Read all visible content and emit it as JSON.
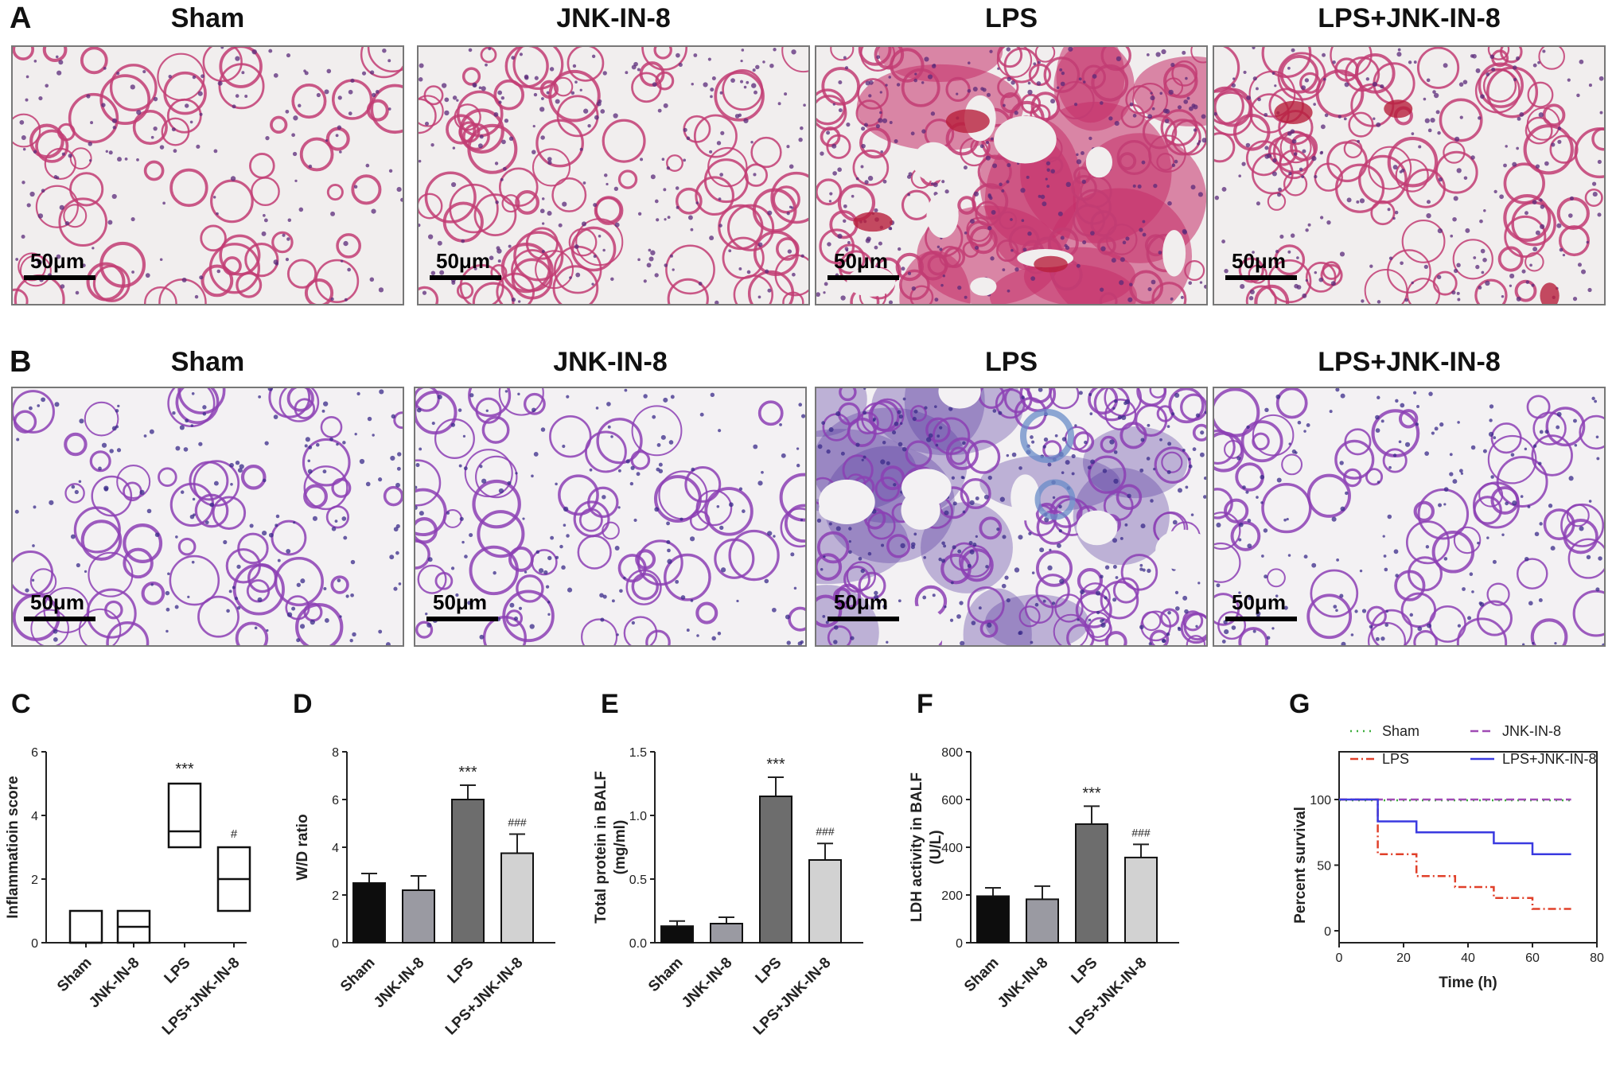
{
  "panel_labels": [
    "A",
    "B",
    "C",
    "D",
    "E",
    "F",
    "G"
  ],
  "rows": [
    {
      "label": "A",
      "titles": [
        "Sham",
        "JNK-IN-8",
        "LPS",
        "LPS+JNK-IN-8"
      ],
      "stain": "he",
      "colors": {
        "bg": "#f1eeee",
        "cell": "#c23c73",
        "dense": "#c4306a",
        "vessel": "#b81f3c"
      },
      "density": [
        0.55,
        0.75,
        1.0,
        0.8
      ]
    },
    {
      "label": "B",
      "titles": [
        "Sham",
        "JNK-IN-8",
        "LPS",
        "LPS+JNK-IN-8"
      ],
      "stain": "pas",
      "colors": {
        "bg": "#f3f1f3",
        "cell": "#8c3fb4",
        "dense": "#5a3aa0",
        "vessel": "#b4b0b0"
      },
      "density": [
        0.55,
        0.55,
        1.0,
        0.6
      ]
    }
  ],
  "scale_bar": "50μm",
  "chart_data": [
    {
      "panel": "C",
      "type": "box",
      "ylabel": "Inflammatioin score",
      "ylim": [
        0,
        6
      ],
      "yticks": [
        0,
        2,
        4,
        6
      ],
      "categories": [
        "Sham",
        "JNK-IN-8",
        "LPS",
        "LPS+JNK-IN-8"
      ],
      "boxes": [
        {
          "q1": 0,
          "median": 0,
          "q3": 1
        },
        {
          "q1": 0,
          "median": 0.5,
          "q3": 1
        },
        {
          "q1": 3,
          "median": 3.5,
          "q3": 5
        },
        {
          "q1": 1,
          "median": 2,
          "q3": 3
        }
      ],
      "annotations": [
        "",
        "",
        "***",
        "#"
      ]
    },
    {
      "panel": "D",
      "type": "bar",
      "ylabel": "W/D ratio",
      "ylim": [
        0,
        8
      ],
      "yticks": [
        0,
        2,
        4,
        6,
        8
      ],
      "categories": [
        "Sham",
        "JNK-IN-8",
        "LPS",
        "LPS+JNK-IN-8"
      ],
      "values": [
        2.5,
        2.2,
        6.0,
        3.75
      ],
      "errors": [
        0.4,
        0.6,
        0.6,
        0.8
      ],
      "annotations": [
        "",
        "",
        "***",
        "###"
      ],
      "colors": [
        "#0d0d0d",
        "#9a9aa2",
        "#6d6d6d",
        "#d2d2d2"
      ]
    },
    {
      "panel": "E",
      "type": "bar",
      "ylabel": "Total protein in BALF (mg/ml)",
      "ylabel_lines": [
        "Total protein in BALF",
        "(mg/ml)"
      ],
      "ylim": [
        0,
        1.5
      ],
      "yticks": [
        "0.0",
        "0.5",
        "1.0",
        "1.5"
      ],
      "categories": [
        "Sham",
        "JNK-IN-8",
        "LPS",
        "LPS+JNK-IN-8"
      ],
      "values": [
        0.13,
        0.15,
        1.15,
        0.65
      ],
      "errors": [
        0.04,
        0.05,
        0.15,
        0.13
      ],
      "annotations": [
        "",
        "",
        "***",
        "###"
      ],
      "colors": [
        "#0d0d0d",
        "#9a9aa2",
        "#6d6d6d",
        "#d2d2d2"
      ]
    },
    {
      "panel": "F",
      "type": "bar",
      "ylabel": "LDH activity in BALF (U/L)",
      "ylabel_lines": [
        "LDH activity in BALF",
        "(U/L)"
      ],
      "ylim": [
        0,
        800
      ],
      "yticks": [
        0,
        200,
        400,
        600,
        800
      ],
      "categories": [
        "Sham",
        "JNK-IN-8",
        "LPS",
        "LPS+JNK-IN-8"
      ],
      "values": [
        195,
        182,
        497,
        357
      ],
      "errors": [
        35,
        55,
        75,
        55
      ],
      "annotations": [
        "",
        "",
        "***",
        "###"
      ],
      "colors": [
        "#0d0d0d",
        "#9a9aa2",
        "#6d6d6d",
        "#d2d2d2"
      ]
    },
    {
      "panel": "G",
      "type": "line",
      "xlabel": "Time (h)",
      "ylabel": "Percent survival",
      "xlim": [
        0,
        80
      ],
      "ylim": [
        0,
        100
      ],
      "xticks": [
        0,
        20,
        40,
        60,
        80
      ],
      "yticks": [
        0,
        50,
        100
      ],
      "series": [
        {
          "name": "Sham",
          "color": "#3fae3f",
          "dash": "2,6",
          "x": [
            0,
            72
          ],
          "y": [
            100,
            100
          ]
        },
        {
          "name": "JNK-IN-8",
          "color": "#a04ab4",
          "dash": "10,5",
          "x": [
            0,
            72
          ],
          "y": [
            100,
            100
          ]
        },
        {
          "name": "LPS",
          "color": "#e0402a",
          "dash": "10,4,2,4",
          "x": [
            0,
            12,
            12,
            24,
            24,
            36,
            36,
            48,
            48,
            60,
            60,
            72
          ],
          "y": [
            100,
            100,
            58.3,
            58.3,
            41.7,
            41.7,
            33.3,
            33.3,
            25,
            25,
            16.7,
            16.7
          ]
        },
        {
          "name": "LPS+JNK-IN-8",
          "color": "#3a3ae0",
          "dash": "",
          "x": [
            0,
            12,
            12,
            24,
            24,
            48,
            48,
            60,
            60,
            72
          ],
          "y": [
            100,
            100,
            83.3,
            83.3,
            75,
            75,
            66.7,
            66.7,
            58.3,
            58.3
          ]
        }
      ]
    }
  ]
}
